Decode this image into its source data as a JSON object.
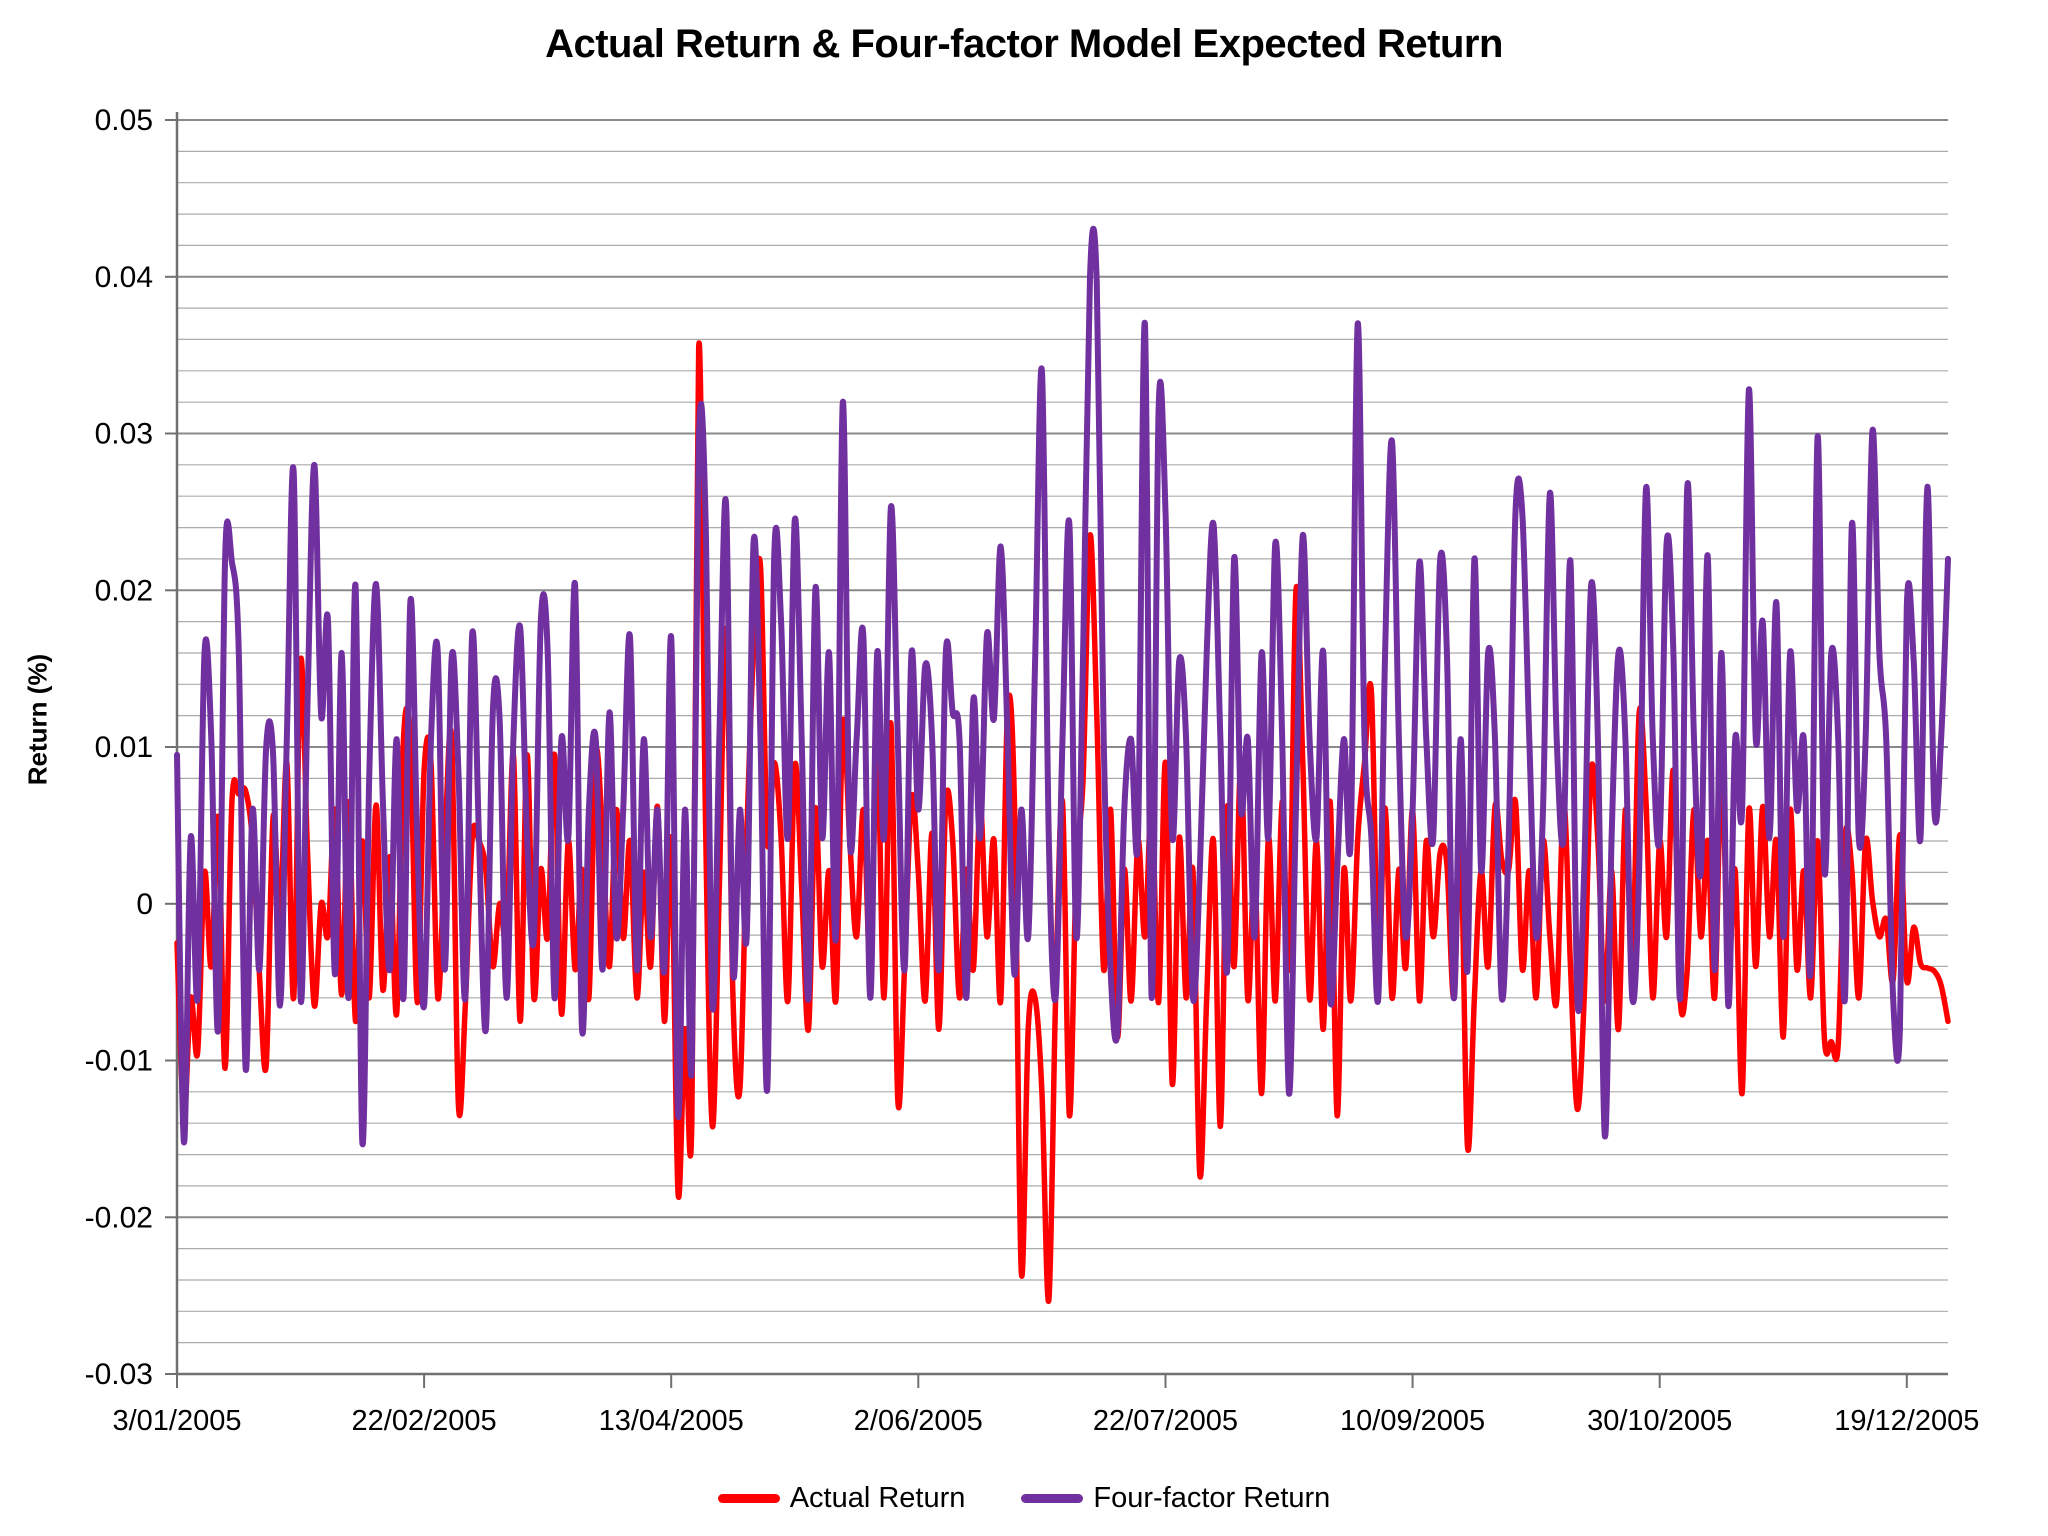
{
  "page": {
    "background": "#ffffff"
  },
  "chart_data": {
    "type": "line",
    "title": "Actual Return & Four-factor Model Expected Return",
    "ylabel": "Return (%)",
    "xlabel": "",
    "ylim": [
      -0.03,
      0.05
    ],
    "y_major_step": 0.01,
    "y_minor_step": 0.002,
    "grid": "horizontal major and minor gridlines on, vertical off",
    "legend_position": "bottom-center",
    "smoothed_lines": true,
    "n_points": 259,
    "y_tick_labels": [
      "0.05",
      "0.04",
      "0.03",
      "0.02",
      "0.01",
      "0",
      "-0.01",
      "-0.02",
      "-0.03"
    ],
    "x_tick_labels": [
      "3/01/2005",
      "22/02/2005",
      "13/04/2005",
      "2/06/2005",
      "22/07/2005",
      "10/09/2005",
      "30/10/2005",
      "19/12/2005"
    ],
    "x_tick_indices": [
      0,
      36,
      72,
      108,
      144,
      180,
      216,
      252
    ],
    "series": [
      {
        "name": "Actual Return",
        "color": "#FF0000",
        "values": [
          -0.0025,
          -0.0135,
          -0.006,
          -0.0095,
          0.002,
          -0.004,
          0.0055,
          -0.0105,
          0.0065,
          0.007,
          0.0072,
          0.004,
          -0.0045,
          -0.0103,
          0.0055,
          -0.001,
          0.009,
          -0.006,
          0.0155,
          0.0035,
          -0.0065,
          0.0,
          -0.002,
          0.006,
          -0.0058,
          0.0065,
          -0.0075,
          0.004,
          -0.006,
          0.0063,
          -0.0055,
          0.003,
          -0.007,
          0.0105,
          0.0102,
          -0.0063,
          0.0085,
          0.009,
          -0.006,
          0.0035,
          0.0105,
          -0.0128,
          -0.0065,
          0.0042,
          0.004,
          0.0021,
          -0.004,
          0.0,
          -0.002,
          0.0095,
          -0.0075,
          0.0095,
          -0.006,
          0.0022,
          -0.0021,
          0.0095,
          -0.007,
          0.004,
          -0.0042,
          0.0022,
          -0.006,
          0.0095,
          0.0042,
          -0.004,
          0.006,
          -0.0022,
          0.004,
          -0.006,
          0.002,
          -0.004,
          0.0062,
          -0.0075,
          0.0041,
          -0.0185,
          -0.008,
          -0.014,
          0.0355,
          0.005,
          -0.0142,
          0.001,
          0.0175,
          -0.006,
          -0.0118,
          0.0042,
          0.0163,
          0.0215,
          0.004,
          0.009,
          0.0042,
          -0.0062,
          0.0088,
          0.001,
          -0.008,
          0.0061,
          -0.004,
          0.0021,
          -0.0061,
          0.0115,
          0.0041,
          -0.0021,
          0.006,
          -0.004,
          0.0102,
          -0.006,
          0.0115,
          -0.0125,
          -0.004,
          0.0068,
          0.002,
          -0.0062,
          0.0045,
          -0.008,
          0.0065,
          0.004,
          -0.006,
          0.0022,
          -0.0042,
          0.0063,
          -0.0021,
          0.0041,
          -0.0062,
          0.0125,
          0.0065,
          -0.0235,
          -0.008,
          -0.006,
          -0.012,
          -0.0253,
          -0.006,
          0.0065,
          -0.0135,
          0.002,
          0.008,
          0.0235,
          0.012,
          -0.0042,
          0.006,
          -0.0085,
          0.0022,
          -0.0062,
          0.004,
          -0.0021,
          0.0065,
          -0.0063,
          0.009,
          -0.0115,
          0.0042,
          -0.006,
          0.0021,
          -0.0173,
          -0.006,
          0.004,
          -0.0142,
          0.0061,
          -0.004,
          0.009,
          -0.0061,
          0.0022,
          -0.0121,
          0.0042,
          -0.0062,
          0.0065,
          -0.004,
          0.0199,
          0.009,
          -0.0061,
          0.004,
          -0.008,
          0.0065,
          -0.0135,
          0.0022,
          -0.0062,
          0.0041,
          0.009,
          0.0135,
          -0.0042,
          0.0061,
          -0.006,
          0.0022,
          -0.0041,
          0.006,
          -0.0062,
          0.004,
          -0.0021,
          0.0032,
          0.0025,
          -0.006,
          0.0042,
          -0.0155,
          -0.006,
          0.0021,
          -0.004,
          0.0062,
          0.0028,
          0.0022,
          0.0065,
          -0.0042,
          0.0021,
          -0.006,
          0.004,
          -0.0021,
          -0.0062,
          0.0065,
          -0.004,
          -0.0131,
          -0.006,
          0.0085,
          0.004,
          -0.0062,
          0.0021,
          -0.008,
          0.006,
          -0.004,
          0.0121,
          0.0065,
          -0.006,
          0.004,
          -0.0021,
          0.0085,
          -0.0062,
          -0.0042,
          0.006,
          -0.0021,
          0.004,
          -0.006,
          0.0086,
          -0.0042,
          0.0021,
          -0.0121,
          0.006,
          -0.004,
          0.0062,
          -0.0021,
          0.004,
          -0.0085,
          0.006,
          -0.0042,
          0.0021,
          -0.006,
          0.004,
          -0.0086,
          -0.0088,
          -0.009,
          0.0042,
          0.0021,
          -0.006,
          0.004,
          0.0002,
          -0.0021,
          -0.001,
          -0.0049,
          0.0044,
          -0.0049,
          -0.0015,
          -0.0038,
          -0.0041,
          -0.0043,
          -0.0052,
          -0.0075
        ]
      },
      {
        "name": "Four-factor Return",
        "color": "#7030A0",
        "values": [
          0.0095,
          -0.0152,
          0.0042,
          -0.006,
          0.016,
          0.0105,
          -0.008,
          0.022,
          0.0218,
          0.016,
          -0.0105,
          0.006,
          -0.0042,
          0.01,
          0.0095,
          -0.0065,
          0.0105,
          0.0275,
          -0.006,
          0.0125,
          0.028,
          0.012,
          0.018,
          -0.0045,
          0.016,
          -0.006,
          0.0203,
          -0.0152,
          0.008,
          0.0204,
          0.0065,
          -0.0042,
          0.0105,
          -0.006,
          0.0193,
          0.004,
          -0.0065,
          0.0105,
          0.016,
          -0.0042,
          0.0156,
          0.0085,
          -0.006,
          0.0172,
          0.0042,
          -0.008,
          0.0122,
          0.0118,
          -0.006,
          0.0105,
          0.0176,
          0.0042,
          -0.0021,
          0.018,
          0.016,
          -0.006,
          0.0105,
          0.0042,
          0.0203,
          -0.008,
          0.006,
          0.0105,
          -0.0042,
          0.0122,
          -0.0021,
          0.006,
          0.017,
          -0.0042,
          0.0105,
          -0.0021,
          0.006,
          -0.0042,
          0.017,
          -0.0135,
          0.006,
          -0.0105,
          0.0292,
          0.0245,
          -0.0065,
          0.0105,
          0.0255,
          -0.0042,
          0.006,
          -0.0021,
          0.0231,
          0.0105,
          -0.0118,
          0.0221,
          0.018,
          0.0042,
          0.0245,
          0.0105,
          -0.006,
          0.0201,
          0.0042,
          0.016,
          -0.0021,
          0.032,
          0.0042,
          0.0105,
          0.017,
          -0.006,
          0.016,
          0.0042,
          0.0253,
          0.0105,
          -0.0042,
          0.016,
          0.006,
          0.0152,
          0.0105,
          -0.0042,
          0.016,
          0.0122,
          0.0105,
          -0.006,
          0.013,
          0.0042,
          0.0172,
          0.0118,
          0.0228,
          0.0105,
          -0.0045,
          0.006,
          -0.0021,
          0.0152,
          0.034,
          0.0042,
          -0.006,
          0.0105,
          0.0242,
          -0.0021,
          0.016,
          0.04,
          0.0395,
          0.0105,
          -0.0042,
          -0.0082,
          0.006,
          0.0105,
          0.0042,
          0.037,
          -0.006,
          0.0315,
          0.025,
          0.0042,
          0.0155,
          0.0105,
          -0.006,
          0.0021,
          0.016,
          0.0242,
          0.0105,
          -0.0042,
          0.022,
          0.006,
          0.0105,
          -0.0021,
          0.016,
          0.0042,
          0.023,
          0.0105,
          -0.0121,
          0.006,
          0.0235,
          0.0105,
          0.0042,
          0.016,
          -0.006,
          0.0021,
          0.0105,
          0.0042,
          0.037,
          0.0105,
          0.0042,
          -0.006,
          0.016,
          0.0295,
          0.0105,
          -0.0021,
          0.006,
          0.0218,
          0.0105,
          0.0042,
          0.0218,
          0.016,
          -0.006,
          0.0105,
          -0.0042,
          0.022,
          0.0021,
          0.016,
          0.0105,
          -0.006,
          0.0042,
          0.025,
          0.0248,
          0.0105,
          -0.0021,
          0.006,
          0.0262,
          0.0105,
          0.0042,
          0.0218,
          -0.006,
          0.0021,
          0.0203,
          0.0105,
          -0.0148,
          0.0042,
          0.016,
          0.0105,
          -0.006,
          0.0021,
          0.0265,
          0.0105,
          0.0042,
          0.023,
          0.016,
          -0.006,
          0.0265,
          0.0105,
          0.0021,
          0.0222,
          -0.0042,
          0.016,
          -0.0065,
          0.0105,
          0.006,
          0.0328,
          0.0105,
          0.018,
          0.0042,
          0.0192,
          -0.0021,
          0.016,
          0.006,
          0.0105,
          -0.0042,
          0.0298,
          0.0021,
          0.016,
          0.0105,
          -0.006,
          0.0242,
          0.0042,
          0.0105,
          0.0302,
          0.016,
          0.0105,
          -0.006,
          -0.008,
          0.019,
          0.0155,
          0.0042,
          0.0266,
          0.006,
          0.0105,
          0.022
        ]
      }
    ]
  }
}
